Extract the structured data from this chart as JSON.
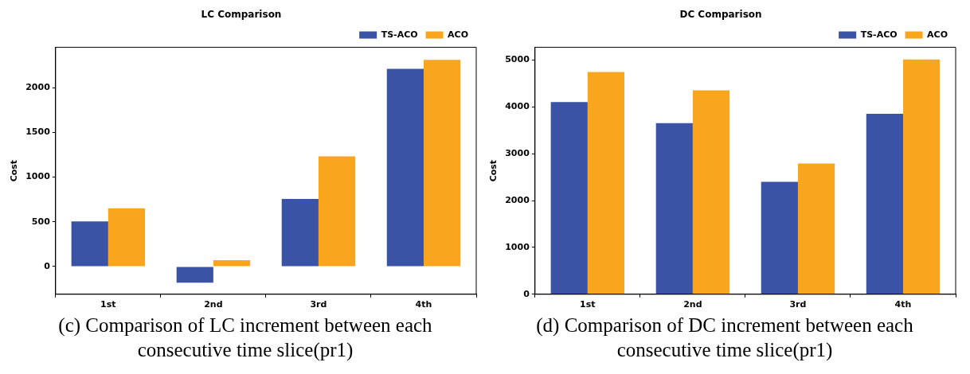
{
  "chart_data": [
    {
      "type": "bar",
      "title": "LC Comparison",
      "ylabel": "Cost",
      "categories": [
        "1st",
        "2nd",
        "3rd",
        "4th"
      ],
      "series": [
        {
          "name": "TS-ACO",
          "color": "#3a53a4",
          "values": [
            505,
            -180,
            755,
            2210
          ]
        },
        {
          "name": "ACO",
          "color": "#f9a51d",
          "values": [
            650,
            70,
            1230,
            2310
          ]
        }
      ],
      "ylim": [
        -310,
        2450
      ],
      "yticks": [
        0,
        500,
        1000,
        1500,
        2000
      ],
      "grid": false,
      "legend": "top right",
      "annotations": [
        "(c) Comparison of LC increment between each consecutive time slice(pr1)"
      ]
    },
    {
      "type": "bar",
      "title": "DC Comparison",
      "ylabel": "Cost",
      "categories": [
        "1st",
        "2nd",
        "3rd",
        "4th"
      ],
      "series": [
        {
          "name": "TS-ACO",
          "color": "#3a53a4",
          "values": [
            4100,
            3650,
            2400,
            3850
          ]
        },
        {
          "name": "ACO",
          "color": "#f9a51d",
          "values": [
            4740,
            4350,
            2790,
            5010
          ]
        }
      ],
      "ylim": [
        0,
        5270
      ],
      "yticks": [
        0,
        1000,
        2000,
        3000,
        4000,
        5000
      ],
      "grid": false,
      "legend": "top right",
      "annotations": [
        "(d) Comparison of DC increment between each consecutive time slice(pr1)"
      ]
    }
  ]
}
